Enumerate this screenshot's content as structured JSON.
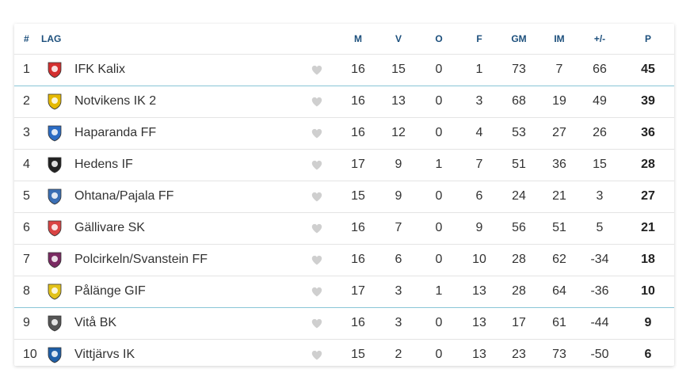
{
  "header": {
    "rank": "#",
    "team": "LAG",
    "m": "M",
    "v": "V",
    "o": "O",
    "f": "F",
    "gm": "GM",
    "im": "IM",
    "diff": "+/-",
    "p": "P"
  },
  "rows": [
    {
      "rank": "1",
      "team": "IFK Kalix",
      "m": "16",
      "v": "15",
      "o": "0",
      "f": "1",
      "gm": "73",
      "im": "7",
      "diff": "66",
      "p": "45",
      "crest_color": "#d32f2f",
      "crest_icon": "ifk-kalix-crest-icon"
    },
    {
      "rank": "2",
      "team": "Notvikens IK 2",
      "m": "16",
      "v": "13",
      "o": "0",
      "f": "3",
      "gm": "68",
      "im": "19",
      "diff": "49",
      "p": "39",
      "crest_color": "#e5b900",
      "crest_icon": "notvikens-crest-icon"
    },
    {
      "rank": "3",
      "team": "Haparanda FF",
      "m": "16",
      "v": "12",
      "o": "0",
      "f": "4",
      "gm": "53",
      "im": "27",
      "diff": "26",
      "p": "36",
      "crest_color": "#2b6cc4",
      "crest_icon": "haparanda-crest-icon"
    },
    {
      "rank": "4",
      "team": "Hedens IF",
      "m": "17",
      "v": "9",
      "o": "1",
      "f": "7",
      "gm": "51",
      "im": "36",
      "diff": "15",
      "p": "28",
      "crest_color": "#222222",
      "crest_icon": "hedens-crest-icon"
    },
    {
      "rank": "5",
      "team": "Ohtana/Pajala FF",
      "m": "15",
      "v": "9",
      "o": "0",
      "f": "6",
      "gm": "24",
      "im": "21",
      "diff": "3",
      "p": "27",
      "crest_color": "#3a6fb5",
      "crest_icon": "ohtana-pajala-crest-icon"
    },
    {
      "rank": "6",
      "team": "Gällivare SK",
      "m": "16",
      "v": "7",
      "o": "0",
      "f": "9",
      "gm": "56",
      "im": "51",
      "diff": "5",
      "p": "21",
      "crest_color": "#d94444",
      "crest_icon": "gallivare-crest-icon"
    },
    {
      "rank": "7",
      "team": "Polcirkeln/Svanstein FF",
      "m": "16",
      "v": "6",
      "o": "0",
      "f": "10",
      "gm": "28",
      "im": "62",
      "diff": "-34",
      "p": "18",
      "crest_color": "#7a2a62",
      "crest_icon": "polcirkeln-crest-icon"
    },
    {
      "rank": "8",
      "team": "Pålänge GIF",
      "m": "17",
      "v": "3",
      "o": "1",
      "f": "13",
      "gm": "28",
      "im": "64",
      "diff": "-36",
      "p": "10",
      "crest_color": "#e2c21a",
      "crest_icon": "palange-crest-icon"
    },
    {
      "rank": "9",
      "team": "Vitå BK",
      "m": "16",
      "v": "3",
      "o": "0",
      "f": "13",
      "gm": "17",
      "im": "61",
      "diff": "-44",
      "p": "9",
      "crest_color": "#555555",
      "crest_icon": "vita-crest-icon"
    },
    {
      "rank": "10",
      "team": "Vittjärvs IK",
      "m": "15",
      "v": "2",
      "o": "0",
      "f": "13",
      "gm": "23",
      "im": "73",
      "diff": "-50",
      "p": "6",
      "crest_color": "#1f5fa8",
      "crest_icon": "vittjarvs-crest-icon"
    }
  ],
  "colors": {
    "header_text": "#1c4f7c",
    "divider": "#e4e4e4",
    "zone_line": "#89c5d6",
    "heart": "#cfcfcf"
  },
  "icons": {
    "favorite": "heart-icon"
  }
}
